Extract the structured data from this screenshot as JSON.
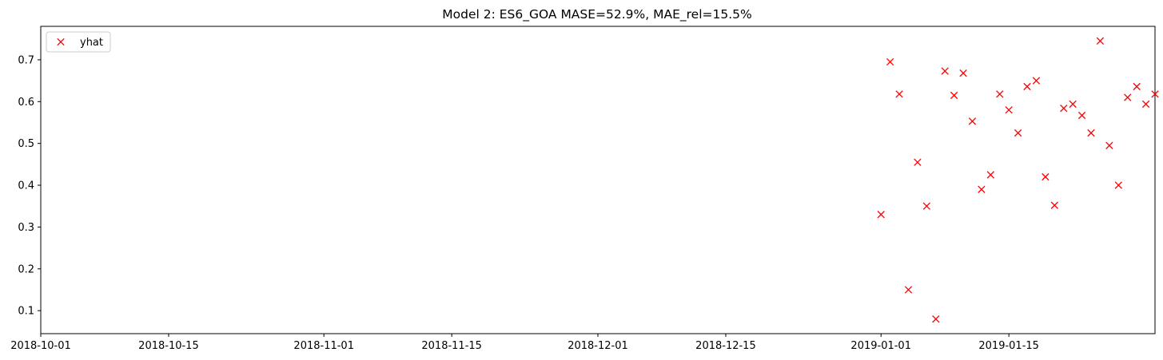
{
  "chart_data": {
    "type": "scatter",
    "title": "Model 2: ES6_GOA MASE=52.9%, MAE_rel=15.5%",
    "xlabel": "",
    "ylabel": "",
    "xlim": [
      "2018-10-01",
      "2019-01-31"
    ],
    "ylim": [
      0.045,
      0.78
    ],
    "grid": false,
    "legend_position": "top-left",
    "x_ticks": [
      "2018-10-01",
      "2018-10-15",
      "2018-11-01",
      "2018-11-15",
      "2018-12-01",
      "2018-12-15",
      "2019-01-01",
      "2019-01-15"
    ],
    "y_ticks": [
      "0.1",
      "0.2",
      "0.3",
      "0.4",
      "0.5",
      "0.6",
      "0.7"
    ],
    "series": [
      {
        "name": "yhat",
        "color": "#ff0000",
        "marker": "x",
        "x": [
          "2019-01-01",
          "2019-01-02",
          "2019-01-03",
          "2019-01-04",
          "2019-01-05",
          "2019-01-06",
          "2019-01-07",
          "2019-01-08",
          "2019-01-09",
          "2019-01-10",
          "2019-01-11",
          "2019-01-12",
          "2019-01-13",
          "2019-01-14",
          "2019-01-15",
          "2019-01-16",
          "2019-01-17",
          "2019-01-18",
          "2019-01-19",
          "2019-01-20",
          "2019-01-21",
          "2019-01-22",
          "2019-01-23",
          "2019-01-24",
          "2019-01-25",
          "2019-01-26",
          "2019-01-27",
          "2019-01-28",
          "2019-01-29",
          "2019-01-30",
          "2019-01-31"
        ],
        "y": [
          0.33,
          0.695,
          0.618,
          0.15,
          0.455,
          0.35,
          0.08,
          0.673,
          0.615,
          0.668,
          0.553,
          0.39,
          0.425,
          0.618,
          0.58,
          0.525,
          0.636,
          0.65,
          0.42,
          0.352,
          0.584,
          0.594,
          0.567,
          0.525,
          0.745,
          0.495,
          0.4,
          0.61,
          0.636,
          0.594,
          0.618
        ]
      }
    ]
  }
}
